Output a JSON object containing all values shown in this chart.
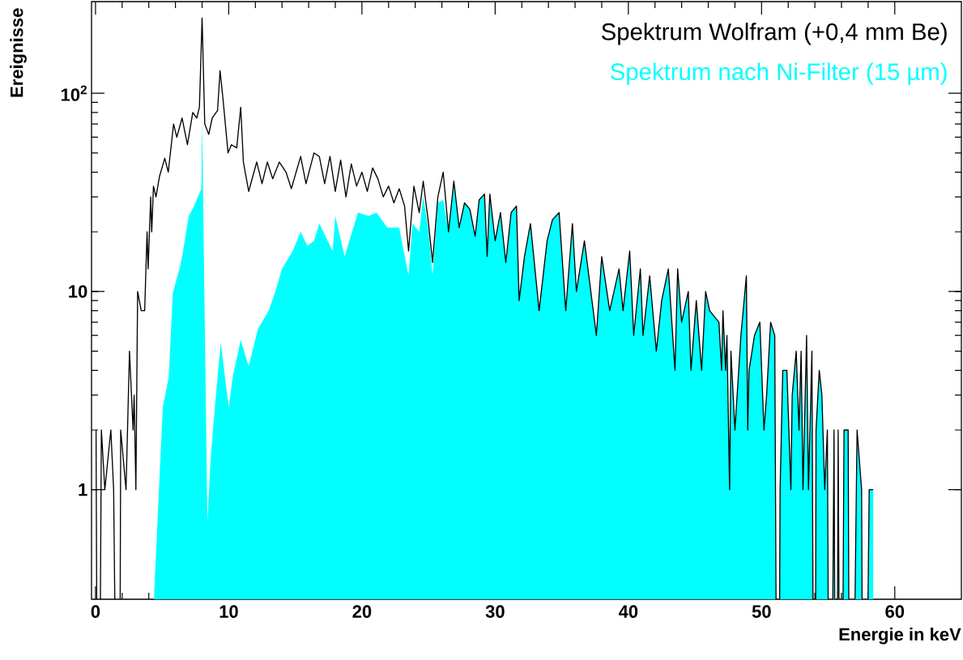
{
  "chart_data": {
    "type": "line",
    "xlabel": "Energie in keV",
    "ylabel": "Ereignisse",
    "log": "y",
    "xlim": [
      -0.3,
      65
    ],
    "ylim": [
      0.28,
      290
    ],
    "xticks": [
      0,
      10,
      20,
      30,
      40,
      50,
      60
    ],
    "yticks": [
      1,
      10,
      {
        "value": 100,
        "label": "10$^{2}$"
      }
    ],
    "legend": "top right",
    "marker": "none",
    "line_style": "solid",
    "grid": false,
    "series": [
      {
        "type": "area",
        "name": "Spektrum nach Ni-Filter (15 µm)",
        "color": "#00ffff",
        "x": [
          4.4,
          5.05,
          5.5,
          5.8,
          6.3,
          6.5,
          7.0,
          7.4,
          7.95,
          8.0,
          8.4,
          8.63,
          9.0,
          9.4,
          10.0,
          10.3,
          10.9,
          11.5,
          12.2,
          13.0,
          13.5,
          14.0,
          14.8,
          15.4,
          15.9,
          16.4,
          16.8,
          17.8,
          18.0,
          18.7,
          19.7,
          20.5,
          21.1,
          21.9,
          22.8,
          23.5,
          23.8,
          24.3,
          24.6,
          25.0,
          25.3,
          25.7,
          26.1,
          26.5,
          26.9,
          27.3,
          27.7,
          28.1,
          28.5,
          28.8,
          29.2,
          29.4,
          29.6,
          30.0,
          30.4,
          30.8,
          31.2,
          31.6,
          31.8,
          32.2,
          32.65,
          33.3,
          33.9,
          34.3,
          34.8,
          35.3,
          35.8,
          36.1,
          36.7,
          37.6,
          38.0,
          38.6,
          39.3,
          39.6,
          40.1,
          40.4,
          40.9,
          41.1,
          41.6,
          42.1,
          42.5,
          43.0,
          43.5,
          43.7,
          44.0,
          44.5,
          44.7,
          45.1,
          45.5,
          45.8,
          46.1,
          46.8,
          47.0,
          47.1,
          47.3,
          47.4,
          47.6,
          47.7,
          48.0,
          48.45,
          48.86,
          48.96,
          49.06,
          49.47,
          49.87,
          50.18,
          50.38,
          50.68,
          50.99,
          51.23,
          51.39,
          51.59,
          51.9,
          52.2,
          52.3,
          52.6,
          52.81,
          52.97,
          53.11,
          53.38,
          53.52,
          53.78,
          53.99,
          54.09,
          54.33,
          54.53,
          54.74,
          54.94,
          55.14,
          55.44,
          55.6,
          55.75,
          55.95,
          56.19,
          56.5,
          56.66,
          57.17,
          57.51,
          57.67,
          58.08,
          58.38
        ],
        "values": [
          0.3,
          2.6,
          3.7,
          9.8,
          13,
          15,
          24,
          27,
          33,
          73,
          0.68,
          1.4,
          2.8,
          5.5,
          2.6,
          3.7,
          5.7,
          4.2,
          6.5,
          8,
          10,
          13,
          16,
          20,
          17,
          18,
          22,
          16,
          24,
          15,
          25,
          24,
          25,
          21,
          21,
          12,
          22,
          20,
          30,
          20,
          12,
          28,
          29,
          20,
          36,
          21,
          28,
          26,
          19,
          29,
          31,
          15,
          31,
          18,
          25,
          14,
          25,
          27,
          9,
          15,
          22,
          8,
          18,
          23,
          25,
          8,
          22,
          10,
          18,
          6,
          15,
          8,
          13,
          8,
          16,
          6,
          13,
          6,
          12,
          5,
          9,
          13,
          4,
          13,
          7,
          10,
          4,
          9,
          4,
          10,
          8,
          7,
          4,
          8,
          4,
          6,
          1,
          5,
          2,
          6,
          12,
          2,
          4,
          6,
          7,
          2,
          3,
          7,
          6,
          null,
          1,
          4,
          4,
          1,
          3,
          5,
          2,
          5,
          1,
          6,
          1,
          5,
          null,
          2,
          4,
          3,
          1,
          2,
          null,
          2,
          null,
          2,
          null,
          2,
          2,
          null,
          2,
          1,
          null,
          1,
          1
        ]
      },
      {
        "name": "Spektrum Wolfram (+0,4 mm Be)",
        "color": "#000000",
        "x": [
          0.04,
          0.2,
          0.44,
          0.7,
          1.15,
          1.36,
          1.76,
          1.89,
          2.29,
          2.55,
          2.82,
          2.9,
          3.03,
          3.16,
          3.43,
          3.69,
          3.87,
          3.95,
          4.14,
          4.22,
          4.35,
          4.54,
          4.8,
          5.2,
          5.46,
          5.86,
          6.1,
          6.5,
          6.9,
          7.3,
          7.6,
          7.8,
          8.0,
          8.2,
          8.5,
          8.76,
          9.16,
          9.35,
          9.56,
          9.95,
          10.2,
          10.6,
          10.9,
          11.1,
          11.5,
          12.1,
          12.5,
          12.9,
          13.3,
          13.8,
          14.3,
          14.7,
          15.4,
          15.8,
          16.4,
          16.8,
          17.2,
          17.6,
          18.0,
          18.4,
          18.8,
          19.2,
          19.6,
          20.0,
          20.4,
          20.8,
          21.2,
          21.6,
          22.0,
          22.4,
          22.8,
          23.2,
          23.5,
          23.9,
          24.3,
          24.6,
          25.0,
          25.3,
          25.7,
          26.1,
          26.5,
          26.9,
          27.3,
          27.7,
          28.1,
          28.5,
          28.8,
          29.2,
          29.4,
          29.6,
          30.0,
          30.4,
          30.8,
          31.2,
          31.6,
          31.8,
          32.2,
          32.65,
          33.3,
          33.9,
          34.3,
          34.8,
          35.3,
          35.8,
          36.1,
          36.7,
          37.6,
          38.0,
          38.6,
          39.3,
          39.6,
          40.1,
          40.4,
          40.9,
          41.1,
          41.6,
          42.1,
          42.5,
          43.0,
          43.5,
          43.7,
          44.0,
          44.5,
          44.7,
          45.1,
          45.5,
          45.8,
          46.1,
          46.8,
          47.0,
          47.1,
          47.3,
          47.4,
          47.6,
          47.7,
          48.0,
          48.45,
          48.86,
          48.96,
          49.06,
          49.47,
          49.87,
          50.18,
          50.38,
          50.68,
          50.99,
          51.23,
          51.39,
          51.59,
          51.9,
          52.2,
          52.3,
          52.6,
          52.81,
          52.97,
          53.11,
          53.38,
          53.52,
          53.78,
          53.99,
          54.09,
          54.33,
          54.53,
          54.74,
          54.94,
          55.14,
          55.44,
          55.6,
          55.75,
          55.95,
          56.19,
          56.5,
          56.66,
          57.17,
          57.51,
          57.67,
          58.08,
          58.38
        ],
        "values": [
          2,
          null,
          2,
          1,
          2,
          1,
          null,
          2,
          1,
          5,
          2,
          3,
          1,
          10,
          8,
          8,
          20,
          13,
          30,
          20,
          34,
          30,
          38,
          47,
          40,
          70,
          60,
          75,
          55,
          80,
          75,
          85,
          240,
          70,
          62,
          75,
          82,
          130,
          95,
          50,
          55,
          53,
          85,
          45,
          32,
          45,
          35,
          45,
          37,
          45,
          40,
          33,
          48,
          35,
          50,
          48,
          35,
          48,
          32,
          46,
          30,
          44,
          34,
          40,
          32,
          42,
          37,
          30,
          34,
          28,
          33,
          27,
          16,
          34,
          25,
          36,
          22,
          14,
          30,
          40,
          20,
          36,
          21,
          28,
          26,
          19,
          29,
          31,
          15,
          31,
          18,
          25,
          14,
          25,
          27,
          9,
          15,
          22,
          8,
          18,
          23,
          25,
          8,
          22,
          10,
          18,
          6,
          15,
          8,
          13,
          8,
          16,
          6,
          13,
          6,
          12,
          5,
          9,
          13,
          4,
          13,
          7,
          10,
          4,
          9,
          4,
          10,
          8,
          7,
          4,
          8,
          4,
          6,
          1,
          5,
          2,
          6,
          12,
          2,
          4,
          6,
          7,
          2,
          3,
          7,
          6,
          null,
          1,
          4,
          4,
          1,
          3,
          5,
          2,
          5,
          1,
          6,
          1,
          5,
          null,
          2,
          4,
          3,
          1,
          2,
          null,
          2,
          null,
          2,
          null,
          2,
          2,
          null,
          2,
          1,
          null,
          1,
          1
        ]
      }
    ]
  }
}
